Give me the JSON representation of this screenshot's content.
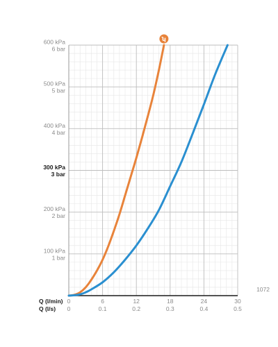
{
  "chart_data": {
    "type": "line",
    "grid": true,
    "reference_code": "1072",
    "y_ticks": [
      {
        "kpa": 100,
        "kpa_label": "100 kPa",
        "bar_label": "1 bar",
        "bold": false
      },
      {
        "kpa": 200,
        "kpa_label": "200 kPa",
        "bar_label": "2 bar",
        "bold": false
      },
      {
        "kpa": 300,
        "kpa_label": "300 kPa",
        "bar_label": "3 bar",
        "bold": true
      },
      {
        "kpa": 400,
        "kpa_label": "400 kPa",
        "bar_label": "4 bar",
        "bold": false
      },
      {
        "kpa": 500,
        "kpa_label": "500 kPa",
        "bar_label": "5 bar",
        "bold": false
      },
      {
        "kpa": 600,
        "kpa_label": "600 kPa",
        "bar_label": "6 bar",
        "bold": false
      }
    ],
    "x_axes": {
      "lmin": {
        "title": "Q (l/min)",
        "ticks": [
          "0",
          "6",
          "12",
          "18",
          "24",
          "30"
        ]
      },
      "ls": {
        "title": "Q (l/s)",
        "ticks": [
          "0",
          "0.1",
          "0.2",
          "0.3",
          "0.4",
          "0.5"
        ]
      }
    },
    "xlim": [
      0,
      30
    ],
    "ylim": [
      0,
      600
    ],
    "series": [
      {
        "color": "#e8833a",
        "marker_symbol": "ʮ",
        "points": [
          [
            0,
            0
          ],
          [
            1,
            2
          ],
          [
            2,
            8
          ],
          [
            3,
            20
          ],
          [
            4,
            38
          ],
          [
            5,
            60
          ],
          [
            6,
            86
          ],
          [
            7,
            118
          ],
          [
            8,
            155
          ],
          [
            9,
            195
          ],
          [
            10,
            240
          ],
          [
            11,
            285
          ],
          [
            12,
            330
          ],
          [
            13,
            378
          ],
          [
            14,
            428
          ],
          [
            15,
            480
          ],
          [
            16,
            540
          ],
          [
            16.9,
            600
          ]
        ]
      },
      {
        "color": "#2a8fd0",
        "points": [
          [
            0,
            0
          ],
          [
            1,
            1
          ],
          [
            2,
            3
          ],
          [
            3,
            8
          ],
          [
            4,
            15
          ],
          [
            6,
            32
          ],
          [
            8,
            56
          ],
          [
            10,
            86
          ],
          [
            12,
            120
          ],
          [
            14,
            160
          ],
          [
            16,
            205
          ],
          [
            18,
            262
          ],
          [
            20,
            320
          ],
          [
            22,
            388
          ],
          [
            24,
            458
          ],
          [
            26,
            530
          ],
          [
            28.2,
            600
          ]
        ]
      }
    ]
  }
}
